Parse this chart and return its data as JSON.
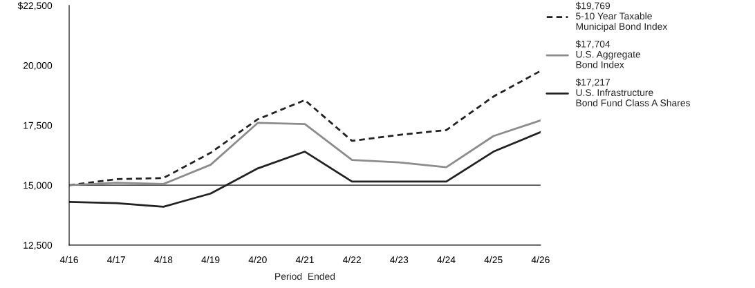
{
  "chart_data": {
    "type": "line",
    "xlabel": "Period  Ended",
    "categories": [
      "4/16",
      "4/17",
      "4/18",
      "4/19",
      "4/20",
      "4/21",
      "4/22",
      "4/23",
      "4/24",
      "4/25",
      "4/26"
    ],
    "series": [
      {
        "name": "$19,769\n5-10 Year Taxable\nMunicipal Bond Index",
        "color": "#222222",
        "line_style": "dashed",
        "values": [
          15000,
          15250,
          15300,
          16350,
          17750,
          18550,
          16850,
          17100,
          17300,
          18700,
          19769
        ]
      },
      {
        "name": "$17,704\nU.S. Aggregate\nBond Index",
        "color": "#8c8c8c",
        "line_style": "solid",
        "values": [
          15000,
          15100,
          15050,
          15850,
          17600,
          17550,
          16050,
          15950,
          15750,
          17050,
          17704
        ]
      },
      {
        "name": "$17,217\nU.S. Infrastructure\nBond Fund Class A Shares",
        "color": "#222222",
        "line_style": "solid",
        "values": [
          14300,
          14250,
          14100,
          14650,
          15700,
          16400,
          15150,
          15150,
          15150,
          16400,
          17217
        ]
      }
    ],
    "ylim": [
      12500,
      22500
    ],
    "yticks": [
      {
        "value": 12500,
        "label": "12,500"
      },
      {
        "value": 15000,
        "label": "15,000"
      },
      {
        "value": 17500,
        "label": "17,500"
      },
      {
        "value": 20000,
        "label": "20,000"
      },
      {
        "value": 22500,
        "label": "$22,500"
      }
    ],
    "ref_lines": [
      {
        "axis": "y",
        "value": 15000,
        "color": "#555555"
      }
    ],
    "legend": "top right",
    "grid": false
  }
}
